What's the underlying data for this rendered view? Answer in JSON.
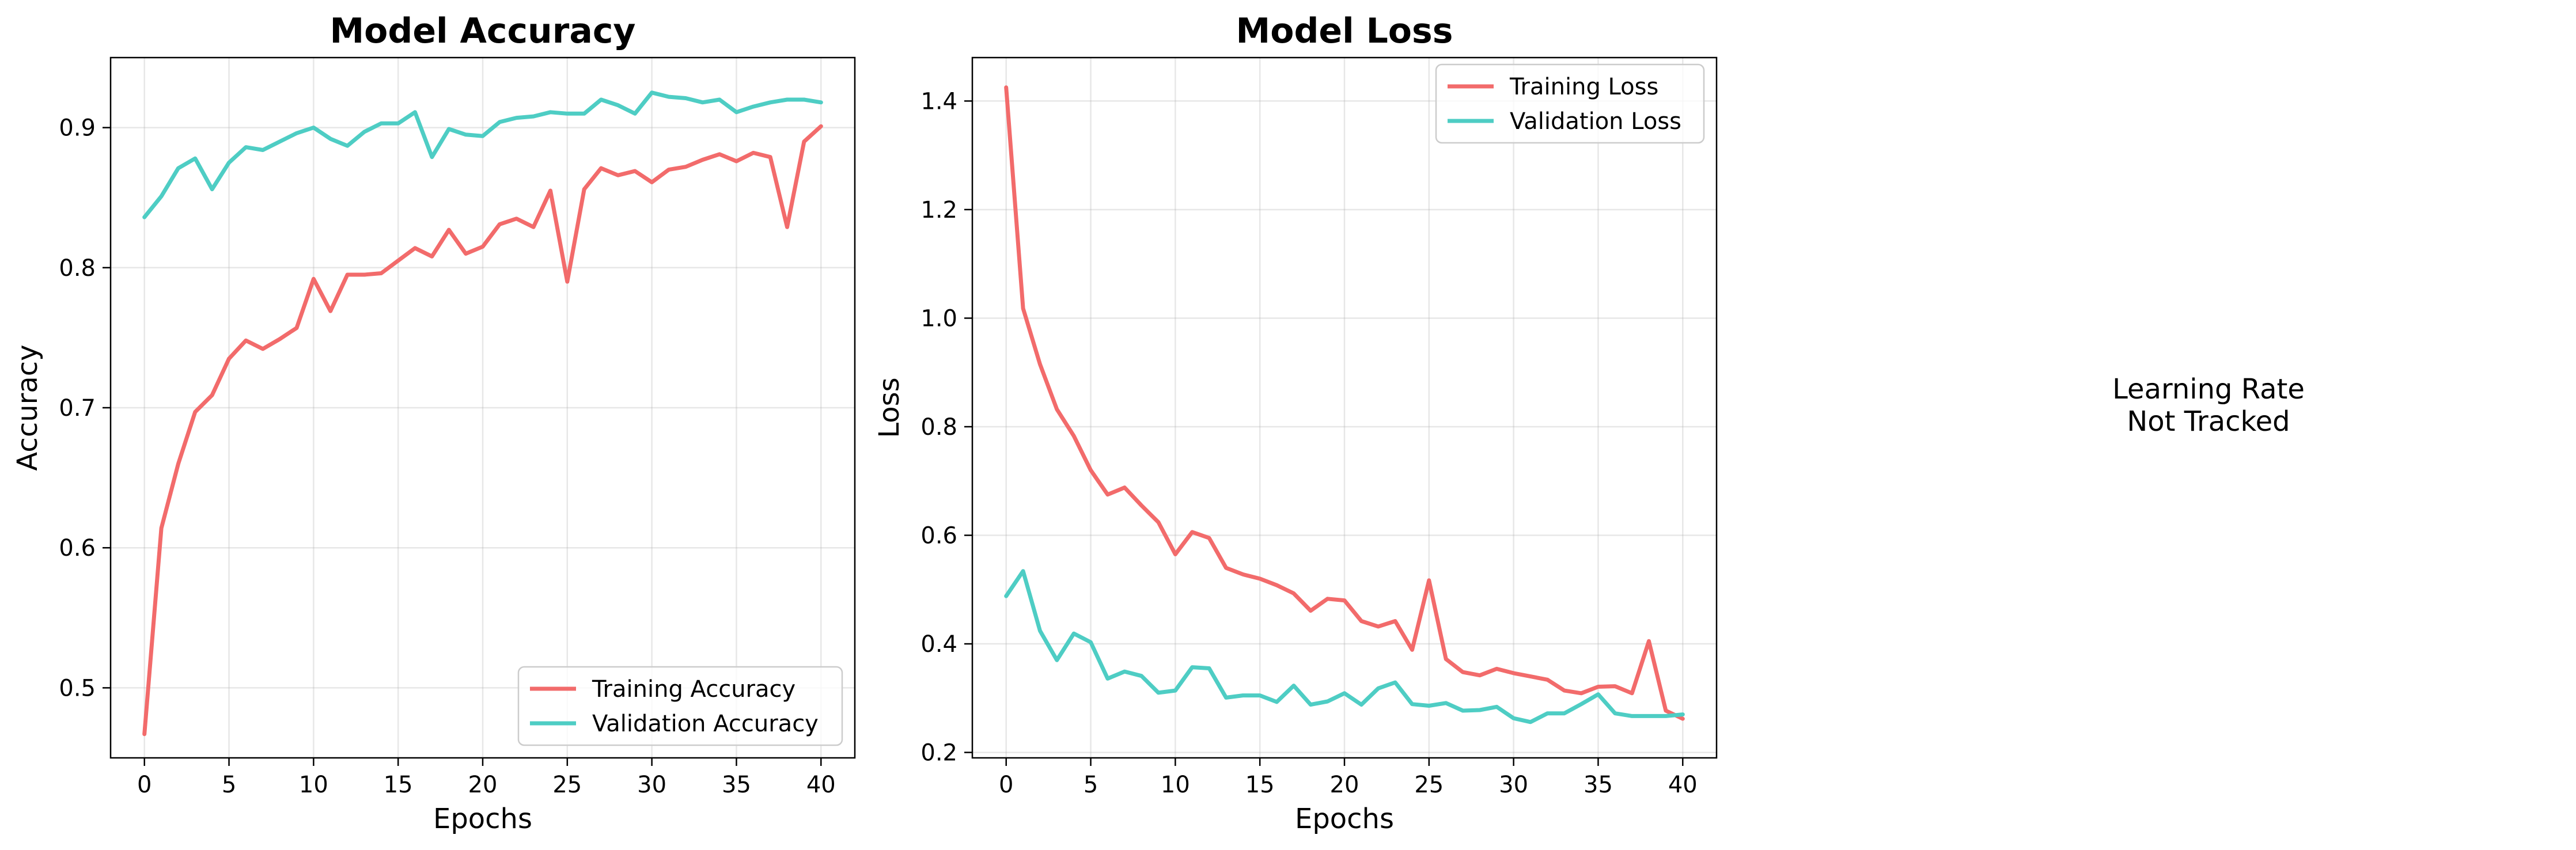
{
  "chart_data": [
    {
      "type": "line",
      "title": "Model Accuracy",
      "xlabel": "Epochs",
      "ylabel": "Accuracy",
      "xlim": [
        -2,
        42
      ],
      "ylim": [
        0.45,
        0.95
      ],
      "xticks": [
        0,
        5,
        10,
        15,
        20,
        25,
        30,
        35,
        40
      ],
      "yticks": [
        0.5,
        0.6,
        0.7,
        0.8,
        0.9
      ],
      "tick_format": 1,
      "grid": true,
      "legend_position": "lower-right",
      "x": [
        0,
        1,
        2,
        3,
        4,
        5,
        6,
        7,
        8,
        9,
        10,
        11,
        12,
        13,
        14,
        15,
        16,
        17,
        18,
        19,
        20,
        21,
        22,
        23,
        24,
        25,
        26,
        27,
        28,
        29,
        30,
        31,
        32,
        33,
        34,
        35,
        36,
        37,
        38,
        39,
        40
      ],
      "series": [
        {
          "name": "Training Accuracy",
          "color": "#f26b6b",
          "values": [
            0.467,
            0.614,
            0.66,
            0.697,
            0.709,
            0.735,
            0.748,
            0.742,
            0.749,
            0.757,
            0.792,
            0.769,
            0.795,
            0.795,
            0.796,
            0.805,
            0.814,
            0.808,
            0.827,
            0.81,
            0.815,
            0.831,
            0.835,
            0.829,
            0.855,
            0.79,
            0.856,
            0.871,
            0.866,
            0.869,
            0.861,
            0.87,
            0.872,
            0.877,
            0.881,
            0.876,
            0.882,
            0.879,
            0.829,
            0.89,
            0.901
          ]
        },
        {
          "name": "Validation Accuracy",
          "color": "#4ecdc4",
          "values": [
            0.836,
            0.851,
            0.871,
            0.878,
            0.856,
            0.875,
            0.886,
            0.884,
            0.89,
            0.896,
            0.9,
            0.892,
            0.887,
            0.897,
            0.903,
            0.903,
            0.911,
            0.879,
            0.899,
            0.895,
            0.894,
            0.904,
            0.907,
            0.908,
            0.911,
            0.91,
            0.91,
            0.92,
            0.916,
            0.91,
            0.925,
            0.922,
            0.921,
            0.918,
            0.92,
            0.911,
            0.915,
            0.918,
            0.92,
            0.92,
            0.918
          ]
        }
      ]
    },
    {
      "type": "line",
      "title": "Model Loss",
      "xlabel": "Epochs",
      "ylabel": "Loss",
      "xlim": [
        -2,
        42
      ],
      "ylim": [
        0.19,
        1.48
      ],
      "xticks": [
        0,
        5,
        10,
        15,
        20,
        25,
        30,
        35,
        40
      ],
      "yticks": [
        0.2,
        0.4,
        0.6,
        0.8,
        1.0,
        1.2,
        1.4
      ],
      "tick_format": 1,
      "grid": true,
      "legend_position": "upper-right",
      "x": [
        0,
        1,
        2,
        3,
        4,
        5,
        6,
        7,
        8,
        9,
        10,
        11,
        12,
        13,
        14,
        15,
        16,
        17,
        18,
        19,
        20,
        21,
        22,
        23,
        24,
        25,
        26,
        27,
        28,
        29,
        30,
        31,
        32,
        33,
        34,
        35,
        36,
        37,
        38,
        39,
        40
      ],
      "series": [
        {
          "name": "Training Loss",
          "color": "#f26b6b",
          "values": [
            1.425,
            1.018,
            0.915,
            0.832,
            0.783,
            0.72,
            0.675,
            0.688,
            0.655,
            0.624,
            0.565,
            0.606,
            0.595,
            0.54,
            0.528,
            0.52,
            0.508,
            0.493,
            0.461,
            0.483,
            0.48,
            0.442,
            0.432,
            0.442,
            0.389,
            0.517,
            0.372,
            0.348,
            0.342,
            0.354,
            0.346,
            0.34,
            0.334,
            0.314,
            0.309,
            0.321,
            0.322,
            0.309,
            0.405,
            0.277,
            0.262
          ]
        },
        {
          "name": "Validation Loss",
          "color": "#4ecdc4",
          "values": [
            0.488,
            0.534,
            0.424,
            0.37,
            0.419,
            0.403,
            0.336,
            0.349,
            0.341,
            0.31,
            0.314,
            0.357,
            0.355,
            0.301,
            0.305,
            0.305,
            0.293,
            0.323,
            0.288,
            0.294,
            0.309,
            0.288,
            0.318,
            0.329,
            0.289,
            0.286,
            0.291,
            0.277,
            0.278,
            0.284,
            0.263,
            0.256,
            0.272,
            0.272,
            0.289,
            0.307,
            0.272,
            0.267,
            0.267,
            0.267,
            0.27
          ]
        }
      ]
    }
  ],
  "learning_rate_panel": {
    "line1": "Learning Rate",
    "line2": "Not Tracked"
  }
}
